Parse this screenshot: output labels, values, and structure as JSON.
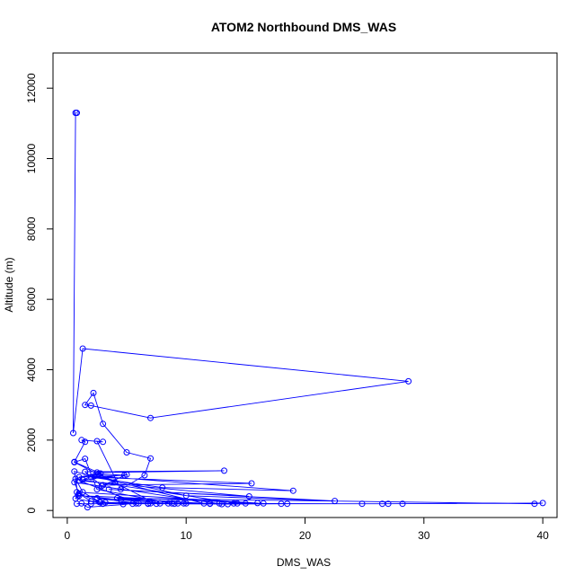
{
  "chart_data": {
    "type": "line",
    "title": "ATOM2 Northbound DMS_WAS",
    "xlabel": "DMS_WAS",
    "ylabel": "Altitude (m)",
    "xlim": [
      -1.2,
      41.2
    ],
    "ylim": [
      -200,
      13000
    ],
    "xticks": [
      0,
      10,
      20,
      30,
      40
    ],
    "yticks": [
      0,
      2000,
      4000,
      6000,
      8000,
      10000,
      12000
    ],
    "grid": false,
    "series_color": "#0000ff",
    "markers": "open-circle",
    "series": [
      {
        "x": [
          0.8,
          0.7,
          0.5,
          1.3,
          28.7,
          7.0,
          2.0,
          1.5,
          2.2,
          3.0,
          5.0,
          7.0,
          6.5,
          4.5,
          2.5,
          3.0,
          1.2,
          1.5,
          0.6,
          2.8,
          1.0,
          4.8,
          2.6,
          1.3,
          5.0,
          2.9,
          1.5,
          13.2,
          2.5,
          4.0,
          3.0,
          15.5,
          2.0,
          8.0,
          19.0,
          2.3,
          10.0,
          22.5,
          3.5,
          15.3,
          1.0,
          6.0,
          2.5,
          12.0,
          4.2,
          39.3,
          40.0,
          26.5,
          18.0,
          12.0,
          7.0,
          2.0,
          0.8,
          1.2,
          1.7,
          5.5,
          9.0,
          11.5,
          0.6,
          0.9,
          4.5,
          8.5,
          15.0,
          14.0,
          24.8,
          27.0,
          28.2,
          6.8,
          3.0,
          0.7,
          1.0,
          16.5,
          12.8,
          9.3,
          18.5,
          13.5,
          7.5,
          0.6,
          1.5,
          2.5,
          8.8,
          10.0,
          13.0,
          0.6,
          1.0,
          2.7,
          5.8,
          7.8,
          16.0,
          0.8,
          2.0,
          3.2,
          9.8,
          14.3,
          0.7,
          1.3,
          2.8,
          4.7,
          6.8
        ],
        "y": [
          11300,
          11300,
          2200,
          4600,
          3670,
          2630,
          2980,
          3000,
          3340,
          2460,
          1650,
          1480,
          1000,
          600,
          1970,
          1950,
          2000,
          1950,
          1380,
          1050,
          950,
          1000,
          1040,
          870,
          1020,
          700,
          1100,
          1130,
          1080,
          800,
          720,
          770,
          950,
          650,
          560,
          980,
          420,
          270,
          600,
          400,
          850,
          200,
          350,
          190,
          350,
          190,
          210,
          190,
          190,
          200,
          200,
          190,
          190,
          200,
          90,
          190,
          190,
          200,
          1110,
          430,
          300,
          200,
          200,
          200,
          190,
          190,
          190,
          190,
          190,
          340,
          420,
          200,
          200,
          200,
          190,
          180,
          190,
          1370,
          1470,
          600,
          200,
          200,
          180,
          800,
          480,
          240,
          200,
          200,
          210,
          520,
          260,
          230,
          200,
          200,
          900,
          520,
          230,
          180,
          200
        ]
      }
    ]
  }
}
